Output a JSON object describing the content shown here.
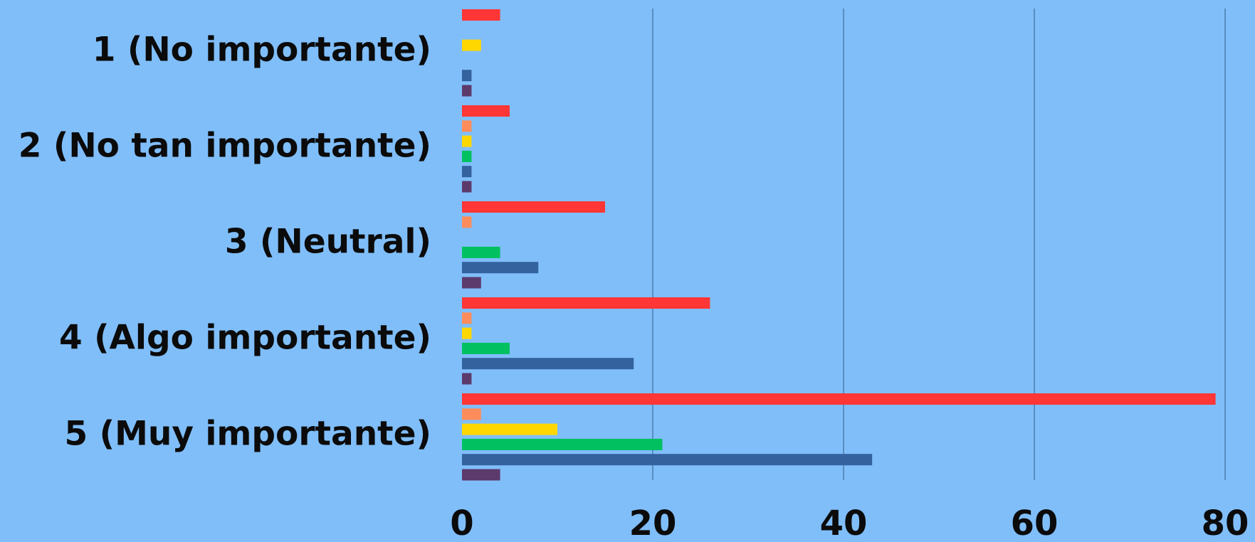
{
  "chart_data": {
    "type": "bar",
    "orientation": "horizontal",
    "title": "",
    "xlabel": "",
    "ylabel": "",
    "categories": [
      "1 (No importante)",
      "2 (No tan importante)",
      "3 (Neutral)",
      "4 (Algo importante)",
      "5 (Muy importante)"
    ],
    "series": [
      {
        "color": "#FF3636",
        "values": [
          4,
          5,
          15,
          26,
          79
        ]
      },
      {
        "color": "#FF8C5A",
        "values": [
          0,
          1,
          1,
          1,
          2
        ]
      },
      {
        "color": "#FFD700",
        "values": [
          2,
          1,
          0,
          1,
          10
        ]
      },
      {
        "color": "#00C060",
        "values": [
          0,
          1,
          4,
          5,
          21
        ]
      },
      {
        "color": "#33629E",
        "values": [
          1,
          1,
          8,
          18,
          43
        ]
      },
      {
        "color": "#5C3A6B",
        "values": [
          1,
          1,
          2,
          1,
          4
        ]
      }
    ],
    "xlim": [
      0,
      80
    ],
    "xticks": [
      "0",
      "20",
      "40",
      "60",
      "80"
    ],
    "grid": true,
    "legend": "none"
  }
}
